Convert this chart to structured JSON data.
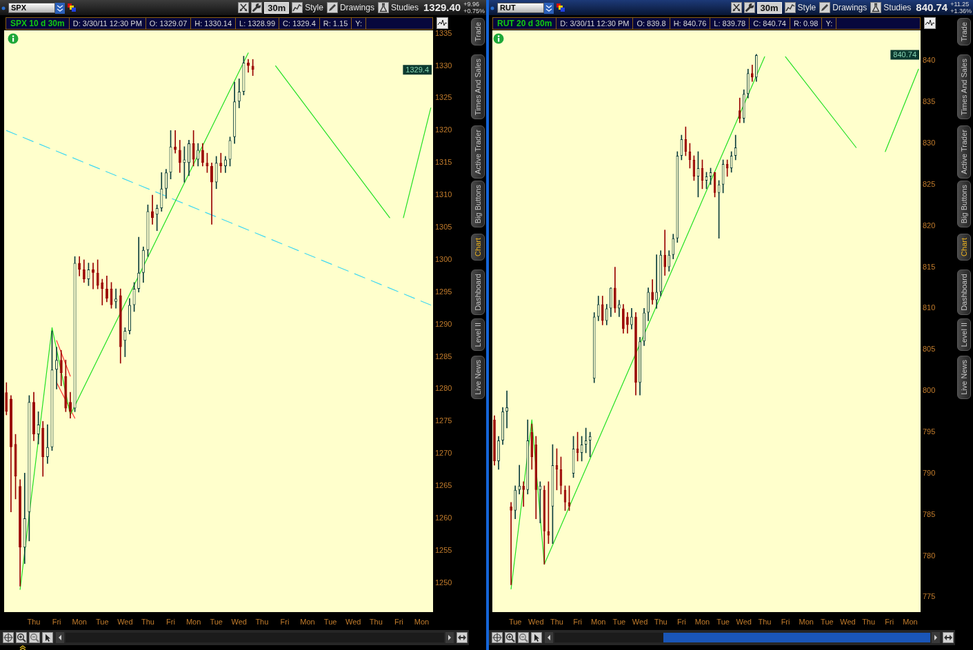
{
  "chart_data": [
    {
      "type": "candlestick",
      "title": "SPX 10 d 30m",
      "marker": "none",
      "categories": [
        null,
        null,
        null,
        null,
        null,
        null,
        "Thu",
        null,
        null,
        null,
        null,
        "Fri",
        null,
        null,
        null,
        null,
        "Mon",
        null,
        null,
        null,
        null,
        "Tue",
        null,
        null,
        null,
        null,
        "Wed",
        null,
        null,
        null,
        null,
        "Thu",
        null,
        null,
        null,
        null,
        "Fri",
        null,
        null,
        null,
        null,
        "Mon",
        null,
        null,
        null,
        null,
        "Tue",
        null,
        null,
        null,
        null,
        "Wed",
        null,
        null,
        null,
        null,
        "Thu",
        null,
        null,
        null,
        null,
        "Fri",
        null,
        null,
        null,
        null,
        "Mon",
        null,
        null,
        null,
        null,
        "Tue",
        null,
        null,
        null,
        null,
        "Wed",
        null,
        null,
        null,
        null,
        "Thu",
        null,
        null,
        null,
        null,
        "Fri",
        null,
        null,
        null,
        null,
        "Mon",
        null,
        null
      ],
      "ohlc": [
        [
          1279.5,
          1281,
          1276,
          1276.5
        ],
        [
          1278.5,
          1279,
          1261,
          1271
        ],
        [
          1271.5,
          1273,
          1263,
          1266.5
        ],
        [
          1265,
          1266,
          1249.5,
          1255.5
        ],
        [
          1255.5,
          1267,
          1253,
          1260
        ],
        [
          1261,
          1279,
          1256.5,
          1278
        ],
        [
          1278,
          1279.5,
          1272,
          1273
        ],
        [
          1273,
          1276.5,
          1271.5,
          1274.5
        ],
        [
          1274,
          1275,
          1266.5,
          1269.5
        ],
        [
          1269.5,
          1274.5,
          1268.5,
          1271
        ],
        [
          1271,
          1289,
          1270.5,
          1283
        ],
        [
          1283,
          1286.5,
          1280,
          1284.5
        ],
        [
          1284.5,
          1286,
          1280.5,
          1282.5
        ],
        [
          1282,
          1284.5,
          1276.5,
          1277
        ],
        [
          1278,
          1279.5,
          1275.5,
          1276.5
        ],
        [
          1277,
          1300.5,
          1276.5,
          1299.5
        ],
        [
          1299.5,
          1300.5,
          1297.5,
          1298.5
        ],
        [
          1298.5,
          1300,
          1296.5,
          1297
        ],
        [
          1297,
          1299.5,
          1296,
          1298.5
        ],
        [
          1298.5,
          1299.5,
          1295.5,
          1298
        ],
        [
          1298,
          1300,
          1295.5,
          1296
        ],
        [
          1296.5,
          1297,
          1293,
          1295.5
        ],
        [
          1295.5,
          1297.5,
          1293.5,
          1294
        ],
        [
          1295.5,
          1296.5,
          1292.5,
          1293
        ],
        [
          1293.5,
          1295.5,
          1292.5,
          1294
        ],
        [
          1294.5,
          1295.5,
          1284,
          1286.5
        ],
        [
          1287.5,
          1289.5,
          1285,
          1289
        ],
        [
          1289,
          1294,
          1288.5,
          1293
        ],
        [
          1293,
          1296.5,
          1292,
          1295.5
        ],
        [
          1295.5,
          1303.5,
          1295,
          1298
        ],
        [
          1298,
          1302,
          1296.5,
          1301.5
        ],
        [
          1301.5,
          1308.5,
          1300.5,
          1307.5
        ],
        [
          1307.5,
          1310,
          1305.5,
          1306.5
        ],
        [
          1307,
          1308.5,
          1304.5,
          1308
        ],
        [
          1308,
          1313.5,
          1307.5,
          1311
        ],
        [
          1311,
          1314,
          1309.5,
          1313.5
        ],
        [
          1313.5,
          1320,
          1312.5,
          1317.5
        ],
        [
          1317.5,
          1320,
          1316.5,
          1317
        ],
        [
          1317,
          1318.5,
          1313.5,
          1315
        ],
        [
          1315,
          1317.5,
          1312,
          1315.5
        ],
        [
          1315,
          1318.5,
          1313,
          1318
        ],
        [
          1318,
          1320,
          1314.5,
          1315.5
        ],
        [
          1315.5,
          1318,
          1314.5,
          1317
        ],
        [
          1317,
          1318,
          1314.5,
          1315
        ],
        [
          1315,
          1316.5,
          1313.5,
          1314.5
        ],
        [
          1314.5,
          1315,
          1305.5,
          1312
        ],
        [
          1312,
          1316,
          1311,
          1315
        ],
        [
          1315,
          1316.5,
          1313.5,
          1314.5
        ],
        [
          1314.5,
          1316,
          1313.5,
          1315.5
        ],
        [
          1315.5,
          1319,
          1314.5,
          1318.5
        ],
        [
          1319,
          1327.5,
          1318,
          1324.5
        ],
        [
          1324.5,
          1328,
          1323.5,
          1326
        ],
        [
          1326,
          1331.5,
          1325.5,
          1330.5
        ],
        [
          1330.5,
          1331,
          1329,
          1330
        ],
        [
          1330,
          1331,
          1328.5,
          1329.4
        ],
        null,
        null,
        null,
        null,
        null,
        null,
        null,
        null,
        null,
        null,
        null,
        null,
        null,
        null,
        null,
        null,
        null,
        null,
        null,
        null,
        null,
        null,
        null,
        null,
        null,
        null,
        null,
        null,
        null,
        null,
        null,
        null,
        null,
        null,
        null,
        null,
        null,
        null,
        null
      ],
      "colors": [
        "#990000",
        "#990000",
        "#990000",
        "#990000",
        "#0a3c3c",
        "#0a3c3c",
        "#990000",
        "#0a3c3c",
        "#990000",
        "#0a3c3c",
        "#0a3c3c",
        "#0a3c3c",
        "#990000",
        "#990000",
        "#990000",
        "#0a3c3c",
        "#990000",
        "#990000",
        "#0a3c3c",
        "#990000",
        "#990000",
        "#990000",
        "#990000",
        "#990000",
        "#0a3c3c",
        "#990000",
        "#0a3c3c",
        "#0a3c3c",
        "#0a3c3c",
        "#0a3c3c",
        "#0a3c3c",
        "#0a3c3c",
        "#990000",
        "#0a3c3c",
        "#0a3c3c",
        "#0a3c3c",
        "#0a3c3c",
        "#990000",
        "#990000",
        "#0a3c3c",
        "#0a3c3c",
        "#990000",
        "#0a3c3c",
        "#990000",
        "#990000",
        "#990000",
        "#0a3c3c",
        "#990000",
        "#0a3c3c",
        "#0a3c3c",
        "#0a3c3c",
        "#0a3c3c",
        "#0a3c3c",
        "#990000",
        "#990000",
        null,
        null,
        null,
        null,
        null,
        null,
        null,
        null,
        null,
        null,
        null,
        null,
        null,
        null,
        null,
        null,
        null,
        null,
        null,
        null,
        null,
        null,
        null,
        null,
        null,
        null,
        null,
        null,
        null,
        null,
        null,
        null,
        null,
        null,
        null,
        null,
        null,
        null,
        null
      ],
      "series": [
        {
          "type": "line",
          "color": "#22e022",
          "values": [
            null,
            null,
            null,
            1249,
            null,
            null,
            null,
            null,
            null,
            null,
            1289.5,
            null,
            null,
            null,
            1276,
            null,
            null,
            null,
            null,
            null,
            null,
            null,
            null,
            null,
            null,
            null,
            null,
            null,
            null,
            null,
            null,
            null,
            null,
            null,
            null,
            null,
            null,
            null,
            null,
            null,
            null,
            null,
            null,
            null,
            null,
            null,
            null,
            null,
            null,
            null,
            null,
            null,
            null,
            1332,
            null,
            null,
            null,
            null,
            null,
            null,
            null,
            null,
            null,
            null,
            null,
            null,
            null,
            null,
            null,
            null,
            null,
            null,
            null,
            null,
            null,
            null,
            null,
            null,
            null,
            null,
            null,
            null,
            null,
            null,
            null,
            null,
            null,
            null,
            null,
            null,
            null,
            null,
            null,
            null
          ]
        },
        {
          "type": "line",
          "color": "#22e022",
          "values": [
            null,
            null,
            null,
            null,
            null,
            null,
            null,
            null,
            null,
            null,
            null,
            null,
            null,
            null,
            null,
            null,
            null,
            null,
            null,
            null,
            null,
            null,
            null,
            null,
            null,
            null,
            null,
            null,
            null,
            null,
            null,
            null,
            null,
            null,
            null,
            null,
            null,
            null,
            null,
            null,
            null,
            null,
            null,
            null,
            null,
            null,
            null,
            null,
            null,
            null,
            null,
            null,
            null,
            null,
            null,
            null,
            null,
            null,
            null,
            1330,
            null,
            null,
            null,
            null,
            null,
            null,
            null,
            null,
            null,
            null,
            null,
            null,
            null,
            null,
            null,
            null,
            null,
            null,
            null,
            null,
            null,
            null,
            null,
            null,
            1306.5,
            null,
            null,
            null,
            null,
            null,
            null,
            null,
            null,
            null
          ]
        },
        {
          "type": "line",
          "color": "#22e022",
          "values": [
            null,
            null,
            null,
            null,
            null,
            null,
            null,
            null,
            null,
            null,
            null,
            null,
            null,
            null,
            null,
            null,
            null,
            null,
            null,
            null,
            null,
            null,
            null,
            null,
            null,
            null,
            null,
            null,
            null,
            null,
            null,
            null,
            null,
            null,
            null,
            null,
            null,
            null,
            null,
            null,
            null,
            null,
            null,
            null,
            null,
            null,
            null,
            null,
            null,
            null,
            null,
            null,
            null,
            null,
            null,
            null,
            null,
            null,
            null,
            null,
            null,
            null,
            null,
            null,
            null,
            null,
            null,
            null,
            null,
            null,
            null,
            null,
            null,
            null,
            null,
            null,
            null,
            null,
            null,
            null,
            null,
            null,
            null,
            null,
            null,
            null,
            null,
            1306.5,
            null,
            null,
            null,
            null,
            null,
            1323.5
          ]
        },
        {
          "type": "line",
          "color": "#ff3030",
          "values": [
            null,
            null,
            null,
            null,
            null,
            null,
            null,
            null,
            null,
            null,
            null,
            1287.5,
            null,
            null,
            1282,
            null,
            null,
            null,
            null,
            null,
            null,
            null,
            null,
            null,
            null,
            null,
            null,
            null,
            null,
            null,
            null,
            null,
            null,
            null,
            null,
            null,
            null,
            null,
            null,
            null,
            null,
            null,
            null,
            null,
            null,
            null,
            null,
            null,
            null,
            null,
            null,
            null,
            null,
            null,
            null,
            null,
            null,
            null,
            null,
            null,
            null,
            null,
            null,
            null,
            null,
            null,
            null,
            null,
            null,
            null,
            null,
            null,
            null,
            null,
            null,
            null,
            null,
            null,
            null,
            null,
            null,
            null,
            null,
            null,
            null,
            null,
            null,
            null,
            null,
            null,
            null,
            null,
            null,
            null
          ]
        },
        {
          "type": "line",
          "color": "#ff3030",
          "values": [
            null,
            null,
            null,
            null,
            null,
            null,
            null,
            null,
            null,
            null,
            null,
            1281,
            null,
            null,
            null,
            1275.5,
            null,
            null,
            null,
            null,
            null,
            null,
            null,
            null,
            null,
            null,
            null,
            null,
            null,
            null,
            null,
            null,
            null,
            null,
            null,
            null,
            null,
            null,
            null,
            null,
            null,
            null,
            null,
            null,
            null,
            null,
            null,
            null,
            null,
            null,
            null,
            null,
            null,
            null,
            null,
            null,
            null,
            null,
            null,
            null,
            null,
            null,
            null,
            null,
            null,
            null,
            null,
            null,
            null,
            null,
            null,
            null,
            null,
            null,
            null,
            null,
            null,
            null,
            null,
            null,
            null,
            null,
            null,
            null,
            null,
            null,
            null,
            null,
            null,
            null,
            null,
            null,
            null,
            null
          ]
        },
        {
          "type": "line",
          "color": "#3fd8f2",
          "line_style": "dashed",
          "values": [
            1320,
            null,
            null,
            null,
            null,
            null,
            null,
            null,
            null,
            null,
            null,
            null,
            null,
            null,
            null,
            null,
            null,
            null,
            null,
            null,
            null,
            null,
            null,
            null,
            null,
            null,
            null,
            null,
            null,
            null,
            null,
            null,
            null,
            null,
            null,
            null,
            null,
            null,
            null,
            null,
            null,
            null,
            null,
            null,
            null,
            null,
            null,
            null,
            null,
            null,
            null,
            null,
            null,
            null,
            null,
            null,
            null,
            null,
            null,
            null,
            null,
            null,
            null,
            null,
            null,
            null,
            null,
            null,
            null,
            null,
            null,
            null,
            null,
            null,
            null,
            null,
            null,
            null,
            null,
            null,
            null,
            null,
            null,
            null,
            null,
            null,
            null,
            null,
            null,
            null,
            null,
            null,
            null,
            1293
          ]
        }
      ],
      "ylim": [
        1245.5,
        1335.5
      ],
      "yticks": [
        1250,
        1255,
        1260,
        1265,
        1270,
        1275,
        1280,
        1285,
        1290,
        1295,
        1300,
        1305,
        1310,
        1315,
        1320,
        1325,
        1330,
        1335
      ],
      "annotations": [
        "D: 3/30/11 12:30 PM",
        "O: 1329.07",
        "H: 1330.14",
        "L: 1328.99",
        "C: 1329.4",
        "R: 1.15",
        "Y:",
        "SPX",
        "30m",
        "Style",
        "Drawings",
        "Studies",
        "1329.40",
        "+9.96",
        "+0.75%",
        "Trade",
        "Times And Sales",
        "Active Trader",
        "Big Buttons",
        "Chart",
        "Dashboard",
        "Level II",
        "Live News",
        {
          "text": "1329.4",
          "y": 1329.4
        }
      ]
    },
    {
      "type": "candlestick",
      "title": "RUT 20 d 30m",
      "marker": "none",
      "categories": [
        null,
        null,
        null,
        null,
        null,
        "Tue",
        null,
        null,
        null,
        null,
        "Wed",
        null,
        null,
        null,
        null,
        "Thu",
        null,
        null,
        null,
        null,
        "Fri",
        null,
        null,
        null,
        null,
        "Mon",
        null,
        null,
        null,
        null,
        "Tue",
        null,
        null,
        null,
        null,
        "Wed",
        null,
        null,
        null,
        null,
        "Thu",
        null,
        null,
        null,
        null,
        "Fri",
        null,
        null,
        null,
        null,
        "Mon",
        null,
        null,
        null,
        null,
        "Tue",
        null,
        null,
        null,
        null,
        "Wed",
        null,
        null,
        null,
        null,
        "Thu",
        null,
        null,
        null,
        null,
        "Fri",
        null,
        null,
        null,
        null,
        "Mon",
        null,
        null,
        null,
        null,
        "Tue",
        null,
        null,
        null,
        null,
        "Wed",
        null,
        null,
        null,
        null,
        "Thu",
        null,
        null,
        null,
        null,
        "Fri",
        null,
        null,
        null,
        null,
        "Mon",
        null,
        null
      ],
      "ohlc": [
        [
          796.5,
          797,
          791,
          791.5
        ],
        [
          791.5,
          794.5,
          790.5,
          794
        ],
        [
          794,
          798,
          793.5,
          797.5
        ],
        [
          797.5,
          800,
          795.5,
          798
        ],
        [
          786,
          786.5,
          776.5,
          785.5
        ],
        [
          785.5,
          788.5,
          784.5,
          788
        ],
        [
          788,
          791,
          787.5,
          788.5
        ],
        [
          788.5,
          789,
          786,
          788
        ],
        [
          788,
          796.5,
          787.5,
          794
        ],
        [
          795,
          796,
          790.5,
          792
        ],
        [
          793.5,
          794.5,
          784.5,
          788
        ],
        [
          788,
          789,
          784,
          788.5
        ],
        [
          788,
          788.5,
          779,
          783
        ],
        [
          783,
          789,
          781.5,
          782.5
        ],
        [
          786,
          793.5,
          781.5,
          791
        ],
        [
          791,
          793,
          788,
          790.5
        ],
        [
          790.5,
          792,
          787.5,
          788.5
        ],
        [
          788,
          788.5,
          785.5,
          786.5
        ],
        [
          786.5,
          788.5,
          785.5,
          786
        ],
        [
          790,
          794.5,
          789.5,
          793
        ],
        [
          793,
          795,
          791.5,
          792.5
        ],
        [
          792.5,
          794.5,
          791.5,
          793.5
        ],
        [
          793.5,
          795.5,
          792.5,
          794
        ],
        [
          794,
          795,
          792,
          794.5
        ],
        [
          801.5,
          809.5,
          801,
          809
        ],
        [
          809,
          811.5,
          808.5,
          810.5
        ],
        [
          810.5,
          811.5,
          808,
          808.5
        ],
        [
          808.5,
          810.5,
          808,
          810
        ],
        [
          810,
          812.5,
          809,
          812.5
        ],
        [
          812.5,
          815,
          809.5,
          810
        ],
        [
          810,
          811,
          809,
          810.5
        ],
        [
          810,
          810.5,
          807,
          807.5
        ],
        [
          809,
          809.5,
          807,
          808
        ],
        [
          808,
          810,
          807.5,
          809
        ],
        [
          809,
          809.5,
          799.5,
          801
        ],
        [
          801,
          806.5,
          799.5,
          806
        ],
        [
          806,
          810,
          805.5,
          809.5
        ],
        [
          809.5,
          812.5,
          808.5,
          812
        ],
        [
          812,
          813.5,
          810.5,
          811
        ],
        [
          811,
          816.5,
          810,
          812
        ],
        [
          812,
          817,
          811.5,
          816.5
        ],
        [
          816.5,
          819.5,
          814,
          815
        ],
        [
          815,
          817,
          814.5,
          816.5
        ],
        [
          816.5,
          819,
          816,
          818.5
        ],
        [
          818.5,
          829,
          818,
          828.5
        ],
        [
          828.5,
          831,
          828,
          830.5
        ],
        [
          830.5,
          832,
          828.5,
          829
        ],
        [
          829,
          830,
          827,
          828
        ],
        [
          828,
          828.5,
          825.5,
          826
        ],
        [
          826,
          829,
          823.5,
          827
        ],
        [
          827,
          828,
          824.5,
          825.5
        ],
        [
          825.5,
          826.5,
          824.5,
          826
        ],
        [
          826,
          827,
          825,
          826.5
        ],
        [
          826.5,
          826.5,
          823.5,
          824
        ],
        [
          824,
          825.5,
          818.5,
          825
        ],
        [
          825,
          828,
          824,
          827.5
        ],
        [
          827.5,
          828,
          826,
          827
        ],
        [
          827,
          829,
          826.5,
          828.5
        ],
        [
          828.5,
          831,
          828,
          829.5
        ],
        [
          834,
          835.5,
          832.5,
          833
        ],
        [
          833,
          836.5,
          832.5,
          836
        ],
        [
          836,
          839,
          835.5,
          838.5
        ],
        [
          838.5,
          839.5,
          837.5,
          838
        ],
        [
          838,
          840.8,
          837.5,
          840.7
        ],
        null,
        null,
        null,
        null,
        null,
        null,
        null,
        null,
        null,
        null,
        null,
        null,
        null,
        null,
        null,
        null,
        null,
        null,
        null,
        null,
        null,
        null,
        null,
        null,
        null,
        null,
        null,
        null,
        null,
        null,
        null,
        null,
        null,
        null,
        null,
        null,
        null,
        null,
        null
      ],
      "colors": [
        "#990000",
        "#0a3c3c",
        "#0a3c3c",
        "#0a3c3c",
        "#990000",
        "#0a3c3c",
        "#0a3c3c",
        "#990000",
        "#0a3c3c",
        "#990000",
        "#990000",
        "#0a3c3c",
        "#990000",
        "#990000",
        "#0a3c3c",
        "#990000",
        "#990000",
        "#990000",
        "#990000",
        "#0a3c3c",
        "#990000",
        "#0a3c3c",
        "#0a3c3c",
        "#0a3c3c",
        "#0a3c3c",
        "#0a3c3c",
        "#990000",
        "#0a3c3c",
        "#0a3c3c",
        "#990000",
        "#0a3c3c",
        "#990000",
        "#990000",
        "#0a3c3c",
        "#990000",
        "#0a3c3c",
        "#0a3c3c",
        "#0a3c3c",
        "#990000",
        "#0a3c3c",
        "#0a3c3c",
        "#990000",
        "#0a3c3c",
        "#0a3c3c",
        "#0a3c3c",
        "#0a3c3c",
        "#990000",
        "#990000",
        "#990000",
        "#0a3c3c",
        "#990000",
        "#0a3c3c",
        "#0a3c3c",
        "#990000",
        "#0a3c3c",
        "#0a3c3c",
        "#990000",
        "#0a3c3c",
        "#0a3c3c",
        "#990000",
        "#0a3c3c",
        "#0a3c3c",
        "#990000",
        "#0a3c3c",
        null,
        null,
        null,
        null,
        null,
        null,
        null,
        null,
        null,
        null,
        null,
        null,
        null,
        null,
        null,
        null,
        null,
        null,
        null,
        null,
        null,
        null,
        null,
        null,
        null,
        null,
        null,
        null,
        null,
        null,
        null,
        null,
        null,
        null,
        null,
        null,
        null,
        null,
        null
      ],
      "series": [
        {
          "type": "line",
          "color": "#22e022",
          "values": [
            null,
            null,
            null,
            null,
            776,
            null,
            null,
            null,
            null,
            796.5,
            null,
            null,
            779,
            null,
            null,
            null,
            null,
            null,
            null,
            null,
            null,
            null,
            null,
            null,
            null,
            null,
            null,
            null,
            null,
            null,
            null,
            null,
            null,
            null,
            null,
            null,
            null,
            null,
            null,
            null,
            null,
            null,
            null,
            null,
            null,
            null,
            null,
            null,
            null,
            null,
            null,
            null,
            null,
            null,
            null,
            null,
            null,
            null,
            null,
            null,
            null,
            null,
            null,
            null,
            null,
            840.5,
            null,
            null,
            null,
            null,
            null,
            null,
            null,
            null,
            null,
            null,
            null,
            null,
            null,
            null,
            null,
            null,
            null,
            null,
            null,
            null,
            null,
            null,
            null,
            null,
            null,
            null,
            null,
            null,
            null,
            null,
            null,
            null,
            null,
            null,
            null,
            null,
            null
          ]
        },
        {
          "type": "line",
          "color": "#22e022",
          "values": [
            null,
            null,
            null,
            null,
            null,
            null,
            null,
            null,
            null,
            null,
            null,
            null,
            null,
            null,
            null,
            null,
            null,
            null,
            null,
            null,
            null,
            null,
            null,
            null,
            null,
            null,
            null,
            null,
            null,
            null,
            null,
            null,
            null,
            null,
            null,
            null,
            null,
            null,
            null,
            null,
            null,
            null,
            null,
            null,
            null,
            null,
            null,
            null,
            null,
            null,
            null,
            null,
            null,
            null,
            null,
            null,
            null,
            null,
            null,
            null,
            null,
            null,
            null,
            null,
            null,
            null,
            null,
            null,
            null,
            null,
            840.5,
            null,
            null,
            null,
            null,
            null,
            null,
            null,
            null,
            null,
            null,
            null,
            null,
            null,
            null,
            null,
            null,
            829.5,
            null,
            null,
            null,
            null,
            null,
            null,
            null,
            null,
            null,
            null,
            null,
            null,
            null,
            null,
            null
          ]
        },
        {
          "type": "line",
          "color": "#22e022",
          "values": [
            null,
            null,
            null,
            null,
            null,
            null,
            null,
            null,
            null,
            null,
            null,
            null,
            null,
            null,
            null,
            null,
            null,
            null,
            null,
            null,
            null,
            null,
            null,
            null,
            null,
            null,
            null,
            null,
            null,
            null,
            null,
            null,
            null,
            null,
            null,
            null,
            null,
            null,
            null,
            null,
            null,
            null,
            null,
            null,
            null,
            null,
            null,
            null,
            null,
            null,
            null,
            null,
            null,
            null,
            null,
            null,
            null,
            null,
            null,
            null,
            null,
            null,
            null,
            null,
            null,
            null,
            null,
            null,
            null,
            null,
            null,
            null,
            null,
            null,
            null,
            null,
            null,
            null,
            null,
            null,
            null,
            null,
            null,
            null,
            null,
            null,
            null,
            null,
            null,
            null,
            null,
            null,
            null,
            null,
            829,
            null,
            null,
            null,
            null,
            null,
            null,
            null,
            839
          ]
        }
      ],
      "ylim": [
        773.2,
        843.7
      ],
      "yticks": [
        775,
        780,
        785,
        790,
        795,
        800,
        805,
        810,
        815,
        820,
        825,
        830,
        835,
        840
      ],
      "annotations": [
        "D: 3/30/11 12:30 PM",
        "O: 839.8",
        "H: 840.76",
        "L: 839.78",
        "C: 840.74",
        "R: 0.98",
        "Y:",
        "RUT",
        "30m",
        "Style",
        "Drawings",
        "Studies",
        "840.74",
        "+11.25",
        "+1.36%",
        "Trade",
        "Times And Sales",
        "Active Trader",
        "Big Buttons",
        "Chart",
        "Dashboard",
        "Level II",
        "Live News",
        {
          "text": "840.74",
          "y": 840.74
        }
      ]
    }
  ]
}
